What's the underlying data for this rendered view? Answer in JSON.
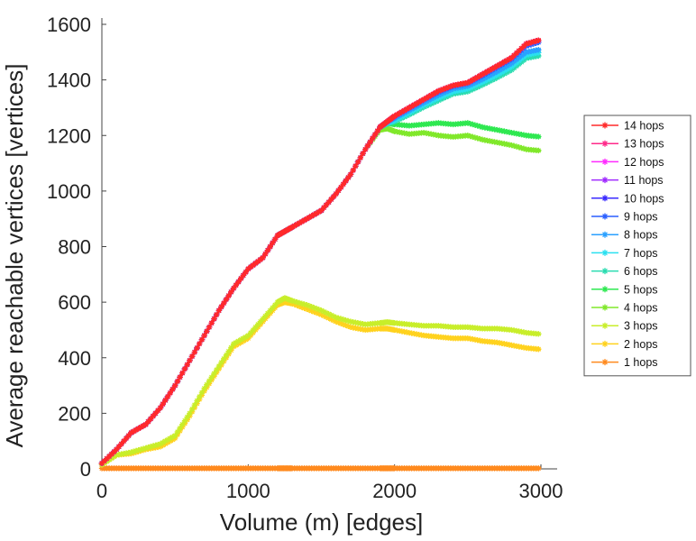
{
  "chart_data": {
    "type": "line",
    "xlabel": "Volume (m) [edges]",
    "ylabel": "Average reachable vertices [vertices]",
    "xlim": [
      0,
      3000
    ],
    "ylim": [
      0,
      1600
    ],
    "xticks": [
      0,
      1000,
      2000,
      3000
    ],
    "yticks": [
      0,
      200,
      400,
      600,
      800,
      1000,
      1200,
      1400,
      1600
    ],
    "grid": false,
    "legend_position": "right",
    "marker": "asterisk",
    "x": [
      0,
      100,
      200,
      300,
      400,
      500,
      600,
      700,
      800,
      900,
      1000,
      1100,
      1200,
      1250,
      1300,
      1400,
      1500,
      1600,
      1700,
      1800,
      1900,
      1950,
      2000,
      2100,
      2200,
      2300,
      2400,
      2500,
      2600,
      2700,
      2800,
      2900,
      3000
    ],
    "series": [
      {
        "name": "14 hops",
        "color": "#ff2a2a",
        "values": [
          20,
          70,
          130,
          160,
          220,
          300,
          390,
          480,
          570,
          650,
          720,
          760,
          840,
          855,
          870,
          900,
          930,
          990,
          1060,
          1150,
          1230,
          1250,
          1270,
          1300,
          1330,
          1360,
          1380,
          1390,
          1420,
          1450,
          1480,
          1530,
          1545
        ]
      },
      {
        "name": "13 hops",
        "color": "#ff2a8a",
        "values": [
          20,
          70,
          130,
          160,
          220,
          300,
          390,
          480,
          570,
          650,
          720,
          760,
          840,
          855,
          870,
          900,
          930,
          990,
          1060,
          1150,
          1230,
          1250,
          1270,
          1300,
          1330,
          1360,
          1380,
          1390,
          1420,
          1450,
          1480,
          1530,
          1545
        ]
      },
      {
        "name": "12 hops",
        "color": "#ff2aff",
        "values": [
          20,
          70,
          130,
          160,
          220,
          300,
          390,
          480,
          570,
          650,
          720,
          760,
          840,
          855,
          870,
          900,
          930,
          990,
          1060,
          1150,
          1230,
          1250,
          1270,
          1300,
          1330,
          1360,
          1380,
          1390,
          1420,
          1450,
          1480,
          1530,
          1545
        ]
      },
      {
        "name": "11 hops",
        "color": "#a02aff",
        "values": [
          20,
          70,
          130,
          160,
          220,
          300,
          390,
          480,
          570,
          650,
          720,
          760,
          840,
          855,
          870,
          900,
          930,
          990,
          1060,
          1150,
          1230,
          1250,
          1270,
          1300,
          1330,
          1360,
          1380,
          1390,
          1420,
          1450,
          1480,
          1530,
          1545
        ]
      },
      {
        "name": "10 hops",
        "color": "#3a2aff",
        "values": [
          20,
          70,
          130,
          160,
          220,
          300,
          390,
          480,
          570,
          650,
          720,
          760,
          840,
          855,
          870,
          900,
          930,
          990,
          1060,
          1150,
          1230,
          1250,
          1270,
          1300,
          1330,
          1360,
          1380,
          1390,
          1420,
          1450,
          1480,
          1530,
          1545
        ]
      },
      {
        "name": "9 hops",
        "color": "#2a5fff",
        "values": [
          20,
          70,
          130,
          160,
          220,
          300,
          390,
          480,
          570,
          650,
          720,
          760,
          840,
          855,
          870,
          900,
          930,
          990,
          1060,
          1150,
          1230,
          1250,
          1268,
          1298,
          1328,
          1356,
          1377,
          1388,
          1415,
          1445,
          1475,
          1522,
          1538
        ]
      },
      {
        "name": "8 hops",
        "color": "#2aa0ff",
        "values": [
          20,
          70,
          130,
          160,
          220,
          300,
          390,
          480,
          570,
          650,
          720,
          760,
          840,
          855,
          870,
          900,
          930,
          990,
          1060,
          1150,
          1230,
          1248,
          1262,
          1290,
          1318,
          1345,
          1368,
          1378,
          1402,
          1430,
          1460,
          1500,
          1510
        ]
      },
      {
        "name": "7 hops",
        "color": "#2ae0f0",
        "values": [
          20,
          70,
          130,
          160,
          220,
          300,
          390,
          480,
          570,
          650,
          720,
          760,
          840,
          855,
          870,
          900,
          930,
          990,
          1060,
          1150,
          1230,
          1245,
          1255,
          1282,
          1310,
          1335,
          1358,
          1368,
          1392,
          1418,
          1448,
          1490,
          1500
        ]
      },
      {
        "name": "6 hops",
        "color": "#2adcb0",
        "values": [
          20,
          70,
          130,
          160,
          220,
          300,
          390,
          480,
          570,
          650,
          720,
          760,
          840,
          855,
          870,
          900,
          930,
          990,
          1060,
          1150,
          1230,
          1242,
          1250,
          1275,
          1302,
          1326,
          1350,
          1358,
          1382,
          1408,
          1436,
          1478,
          1488
        ]
      },
      {
        "name": "5 hops",
        "color": "#2ee850",
        "values": [
          20,
          70,
          130,
          160,
          220,
          300,
          390,
          480,
          570,
          650,
          720,
          760,
          840,
          855,
          870,
          900,
          930,
          990,
          1060,
          1150,
          1230,
          1245,
          1240,
          1235,
          1240,
          1245,
          1240,
          1245,
          1230,
          1220,
          1210,
          1200,
          1195
        ]
      },
      {
        "name": "4 hops",
        "color": "#80e82a",
        "values": [
          20,
          70,
          130,
          160,
          220,
          300,
          390,
          480,
          570,
          650,
          720,
          760,
          840,
          855,
          870,
          900,
          930,
          990,
          1060,
          1150,
          1220,
          1225,
          1215,
          1205,
          1210,
          1200,
          1195,
          1200,
          1185,
          1175,
          1165,
          1150,
          1145
        ]
      },
      {
        "name": "3 hops",
        "color": "#c8ee2a",
        "values": [
          15,
          50,
          60,
          75,
          90,
          120,
          200,
          290,
          370,
          450,
          480,
          540,
          600,
          615,
          605,
          590,
          570,
          545,
          530,
          520,
          525,
          528,
          525,
          520,
          515,
          515,
          510,
          510,
          505,
          505,
          500,
          490,
          485
        ]
      },
      {
        "name": "2 hops",
        "color": "#ffd21e",
        "values": [
          15,
          50,
          55,
          70,
          80,
          110,
          190,
          280,
          360,
          440,
          470,
          530,
          590,
          600,
          595,
          575,
          555,
          530,
          510,
          500,
          505,
          505,
          500,
          490,
          480,
          475,
          470,
          470,
          460,
          455,
          445,
          435,
          430
        ]
      },
      {
        "name": "1 hops",
        "color": "#ff8a1e",
        "values": [
          2,
          2,
          2,
          2,
          2,
          2,
          2,
          2,
          2,
          2,
          2,
          2,
          2,
          2,
          2,
          2,
          2,
          2,
          2,
          2,
          2,
          2,
          2,
          2,
          2,
          2,
          2,
          2,
          2,
          2,
          2,
          2,
          2
        ]
      }
    ]
  }
}
